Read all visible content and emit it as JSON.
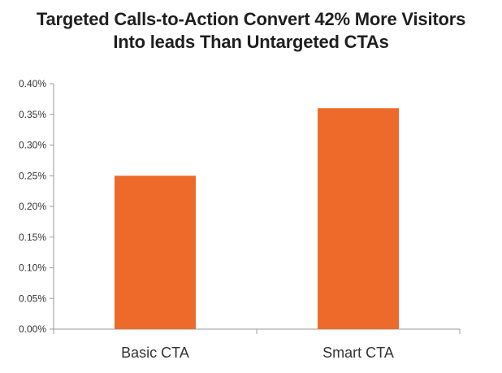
{
  "chart_data": {
    "type": "bar",
    "title_lines": [
      "Targeted Calls-to-Action Convert 42% More Visitors",
      "Into leads Than Untargeted CTAs"
    ],
    "categories": [
      "Basic CTA",
      "Smart CTA"
    ],
    "values": [
      0.0025,
      0.0036
    ],
    "ylim": [
      0,
      0.004
    ],
    "yticks": [
      0,
      0.0005,
      0.001,
      0.0015,
      0.002,
      0.0025,
      0.003,
      0.0035,
      0.004
    ],
    "ytick_labels": [
      "0.00%",
      "0.05%",
      "0.10%",
      "0.15%",
      "0.20%",
      "0.25%",
      "0.30%",
      "0.35%",
      "0.40%"
    ],
    "bar_color": "#EE6A2A",
    "grid": false,
    "xlabel": "",
    "ylabel": ""
  }
}
